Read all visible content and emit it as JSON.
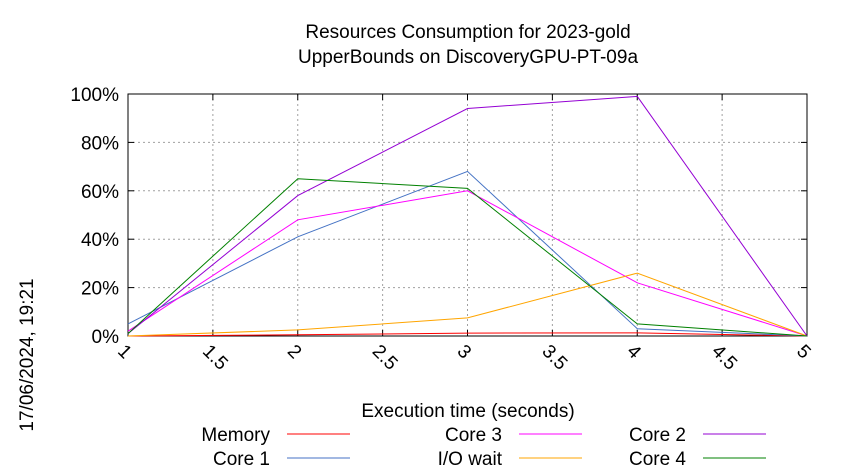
{
  "chart_data": {
    "type": "line",
    "title": "Resources Consumption for 2023-gold",
    "subtitle": "UpperBounds on DiscoveryGPU-PT-09a",
    "xlabel": "Execution time (seconds)",
    "ylabel": "",
    "timestamp": "17/06/2024, 19:21",
    "xlim": [
      1,
      5
    ],
    "ylim": [
      0,
      100
    ],
    "x_ticks": [
      "1",
      "1.5",
      "2",
      "2.5",
      "3",
      "3.5",
      "4",
      "4.5",
      "5"
    ],
    "y_ticks": [
      "0%",
      "20%",
      "40%",
      "60%",
      "80%",
      "100%"
    ],
    "grid": true,
    "legend_position": "bottom",
    "x": [
      1,
      2,
      3,
      4,
      5
    ],
    "series": [
      {
        "name": "Memory",
        "color": "#ff0000",
        "values": [
          0,
          0.5,
          1.2,
          1.3,
          0
        ]
      },
      {
        "name": "Core 1",
        "color": "#4472c4",
        "values": [
          5,
          41,
          68,
          3,
          0
        ]
      },
      {
        "name": "Core 3",
        "color": "#ff00ff",
        "values": [
          2,
          48,
          60,
          22,
          0
        ]
      },
      {
        "name": "I/O wait",
        "color": "#ffa500",
        "values": [
          0,
          2.5,
          7.5,
          26,
          0
        ]
      },
      {
        "name": "Core 2",
        "color": "#9400d3",
        "values": [
          1,
          58,
          94,
          99,
          0
        ]
      },
      {
        "name": "Core 4",
        "color": "#008000",
        "values": [
          1,
          65,
          61,
          5,
          0
        ]
      }
    ]
  }
}
